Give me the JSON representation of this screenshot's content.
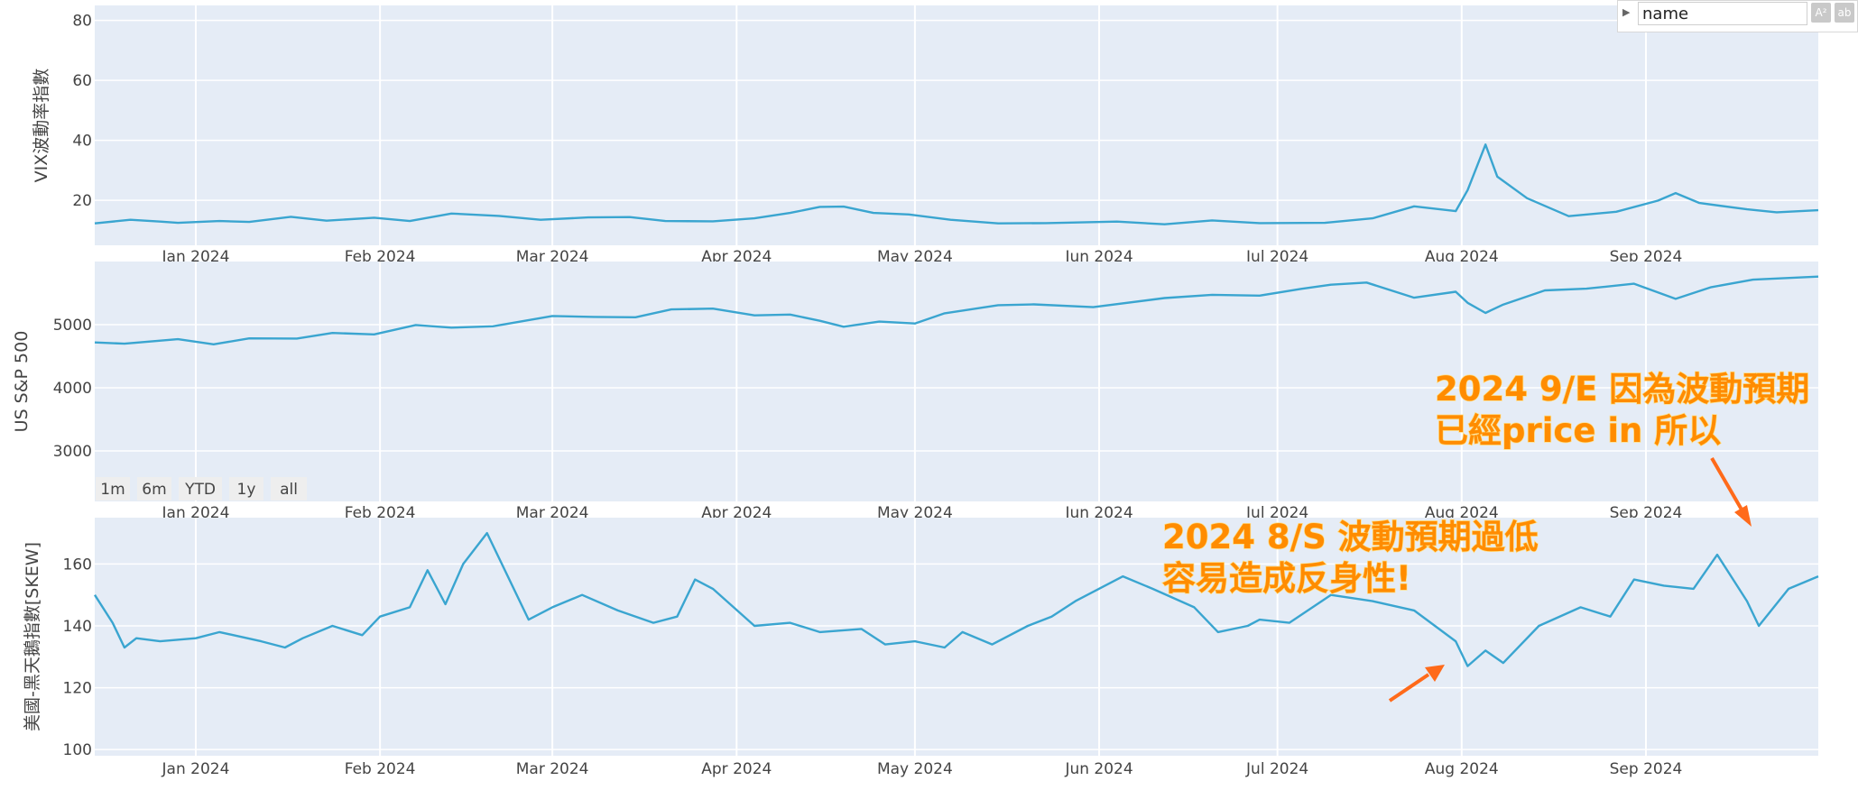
{
  "legend": {
    "value": "name",
    "tool_a": "A²",
    "tool_b": "ab"
  },
  "range_selector": [
    "1m",
    "6m",
    "YTD",
    "1y",
    "all"
  ],
  "colors": {
    "line": "#3aa5d0",
    "panel_bg": "#e5ecf6",
    "grid": "#ffffff",
    "annotation": "#ff8c00",
    "arrow": "#ff6a1a"
  },
  "annotations": [
    {
      "lines": [
        "2024 9/E 因為波動預期",
        "已經price in 所以"
      ]
    },
    {
      "lines": [
        "2024 8/S 波動預期過低",
        "容易造成反身性!"
      ]
    }
  ],
  "chart_data": [
    {
      "type": "line",
      "ylabel": "VIX波動率指數",
      "yticks": [
        20,
        40,
        60,
        80
      ],
      "ylim": [
        5,
        85
      ],
      "xlim": [
        "2023-12-15",
        "2024-09-30"
      ],
      "xticks": [
        "Jan 2024",
        "Feb 2024",
        "Mar 2024",
        "Apr 2024",
        "May 2024",
        "Jun 2024",
        "Jul 2024",
        "Aug 2024",
        "Sep 2024"
      ],
      "series": [
        {
          "x": [
            "2023-12-15",
            "2023-12-21",
            "2023-12-26",
            "2023-12-29",
            "2024-01-05",
            "2024-01-10",
            "2024-01-17",
            "2024-01-23",
            "2024-01-31",
            "2024-02-06",
            "2024-02-13",
            "2024-02-21",
            "2024-02-28",
            "2024-03-07",
            "2024-03-14",
            "2024-03-20",
            "2024-03-28",
            "2024-04-04",
            "2024-04-10",
            "2024-04-15",
            "2024-04-19",
            "2024-04-24",
            "2024-04-30",
            "2024-05-07",
            "2024-05-15",
            "2024-05-23",
            "2024-06-04",
            "2024-06-12",
            "2024-06-20",
            "2024-06-28",
            "2024-07-09",
            "2024-07-17",
            "2024-07-24",
            "2024-07-31",
            "2024-08-02",
            "2024-08-05",
            "2024-08-07",
            "2024-08-12",
            "2024-08-19",
            "2024-08-27",
            "2024-09-03",
            "2024-09-06",
            "2024-09-10",
            "2024-09-18",
            "2024-09-23",
            "2024-09-30"
          ],
          "y": [
            12.3,
            13.5,
            12.9,
            12.5,
            13.1,
            12.8,
            14.5,
            13.2,
            14.2,
            13.1,
            15.6,
            14.8,
            13.5,
            14.3,
            14.4,
            13.1,
            13.0,
            14.0,
            15.8,
            17.8,
            17.9,
            15.8,
            15.3,
            13.5,
            12.3,
            12.4,
            12.9,
            12.0,
            13.3,
            12.4,
            12.5,
            14.0,
            18.0,
            16.4,
            23.4,
            38.6,
            27.9,
            20.7,
            14.7,
            16.2,
            19.9,
            22.4,
            19.1,
            17.0,
            16.0,
            16.7
          ]
        }
      ]
    },
    {
      "type": "line",
      "ylabel": "US  S&P 500",
      "yticks": [
        3000,
        4000,
        5000
      ],
      "ylim": [
        2200,
        6000
      ],
      "xlim": [
        "2023-12-15",
        "2024-09-30"
      ],
      "xticks": [
        "Jan 2024",
        "Feb 2024",
        "Mar 2024",
        "Apr 2024",
        "May 2024",
        "Jun 2024",
        "Jul 2024",
        "Aug 2024",
        "Sep 2024"
      ],
      "series": [
        {
          "x": [
            "2023-12-15",
            "2023-12-20",
            "2023-12-29",
            "2024-01-04",
            "2024-01-10",
            "2024-01-18",
            "2024-01-24",
            "2024-01-31",
            "2024-02-07",
            "2024-02-13",
            "2024-02-20",
            "2024-03-01",
            "2024-03-08",
            "2024-03-15",
            "2024-03-21",
            "2024-03-28",
            "2024-04-04",
            "2024-04-10",
            "2024-04-15",
            "2024-04-19",
            "2024-04-25",
            "2024-05-01",
            "2024-05-06",
            "2024-05-15",
            "2024-05-21",
            "2024-05-31",
            "2024-06-12",
            "2024-06-20",
            "2024-06-28",
            "2024-07-05",
            "2024-07-10",
            "2024-07-16",
            "2024-07-24",
            "2024-07-31",
            "2024-08-02",
            "2024-08-05",
            "2024-08-08",
            "2024-08-15",
            "2024-08-22",
            "2024-08-30",
            "2024-09-06",
            "2024-09-12",
            "2024-09-19",
            "2024-09-30"
          ],
          "y": [
            4719,
            4698,
            4770,
            4688,
            4783,
            4780,
            4868,
            4846,
            4995,
            4953,
            4975,
            5137,
            5123,
            5117,
            5241,
            5254,
            5147,
            5160,
            5061,
            4967,
            5048,
            5018,
            5180,
            5308,
            5321,
            5277,
            5421,
            5473,
            5460,
            5567,
            5633,
            5667,
            5427,
            5522,
            5346,
            5186,
            5319,
            5543,
            5570,
            5648,
            5408,
            5595,
            5713,
            5762
          ]
        }
      ]
    },
    {
      "type": "line",
      "ylabel": "美國-黑天鵝指數[SKEW]",
      "yticks": [
        100,
        120,
        140,
        160
      ],
      "ylim": [
        98,
        175
      ],
      "xlim": [
        "2023-12-15",
        "2024-09-30"
      ],
      "xticks": [
        "Jan 2024",
        "Feb 2024",
        "Mar 2024",
        "Apr 2024",
        "May 2024",
        "Jun 2024",
        "Jul 2024",
        "Aug 2024",
        "Sep 2024"
      ],
      "series": [
        {
          "x": [
            "2023-12-15",
            "2023-12-18",
            "2023-12-20",
            "2023-12-22",
            "2023-12-26",
            "2024-01-01",
            "2024-01-05",
            "2024-01-12",
            "2024-01-16",
            "2024-01-19",
            "2024-01-24",
            "2024-01-29",
            "2024-02-01",
            "2024-02-06",
            "2024-02-09",
            "2024-02-12",
            "2024-02-15",
            "2024-02-19",
            "2024-02-26",
            "2024-03-01",
            "2024-03-06",
            "2024-03-12",
            "2024-03-18",
            "2024-03-22",
            "2024-03-25",
            "2024-03-28",
            "2024-04-04",
            "2024-04-10",
            "2024-04-15",
            "2024-04-22",
            "2024-04-26",
            "2024-05-01",
            "2024-05-06",
            "2024-05-09",
            "2024-05-14",
            "2024-05-20",
            "2024-05-24",
            "2024-05-28",
            "2024-06-05",
            "2024-06-10",
            "2024-06-17",
            "2024-06-21",
            "2024-06-26",
            "2024-06-28",
            "2024-07-03",
            "2024-07-10",
            "2024-07-17",
            "2024-07-24",
            "2024-07-31",
            "2024-08-02",
            "2024-08-05",
            "2024-08-08",
            "2024-08-14",
            "2024-08-21",
            "2024-08-26",
            "2024-08-30",
            "2024-09-04",
            "2024-09-09",
            "2024-09-13",
            "2024-09-18",
            "2024-09-20",
            "2024-09-25",
            "2024-09-30"
          ],
          "y": [
            150,
            141,
            133,
            136,
            135,
            136,
            138,
            135,
            133,
            136,
            140,
            137,
            143,
            146,
            158,
            147,
            160,
            170,
            142,
            146,
            150,
            145,
            141,
            143,
            155,
            152,
            140,
            141,
            138,
            139,
            134,
            135,
            133,
            138,
            134,
            140,
            143,
            148,
            156,
            152,
            146,
            138,
            140,
            142,
            141,
            150,
            148,
            145,
            135,
            127,
            132,
            128,
            140,
            146,
            143,
            155,
            153,
            152,
            163,
            148,
            140,
            152,
            156
          ]
        }
      ]
    }
  ]
}
